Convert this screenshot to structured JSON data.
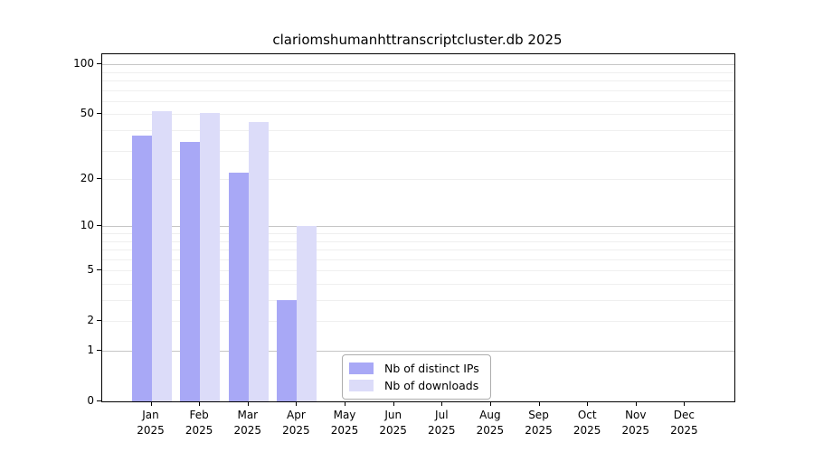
{
  "chart_data": {
    "type": "bar",
    "title": "clariomshumanhttranscriptcluster.db 2025",
    "categories": [
      "Jan",
      "Feb",
      "Mar",
      "Apr",
      "May",
      "Jun",
      "Jul",
      "Aug",
      "Sep",
      "Oct",
      "Nov",
      "Dec"
    ],
    "x_year_label": "2025",
    "series": [
      {
        "name": "Nb of distinct IPs",
        "color": "#a8a8f6",
        "values": [
          37,
          34,
          22,
          3,
          0,
          0,
          0,
          0,
          0,
          0,
          0,
          0
        ]
      },
      {
        "name": "Nb of downloads",
        "color": "#dcdcf9",
        "values": [
          52,
          51,
          45,
          10,
          0,
          0,
          0,
          0,
          0,
          0,
          0,
          0
        ]
      }
    ],
    "yticks": [
      0,
      1,
      2,
      5,
      10,
      20,
      50,
      100
    ],
    "scale": "log1p",
    "ylim": [
      0,
      115
    ],
    "grid": "horizontal",
    "legend_position": "bottom-center-inside",
    "colors": {
      "major_gridline": "#c6c6c6",
      "minor_gridline": "#efefef",
      "axis": "#000000"
    }
  }
}
